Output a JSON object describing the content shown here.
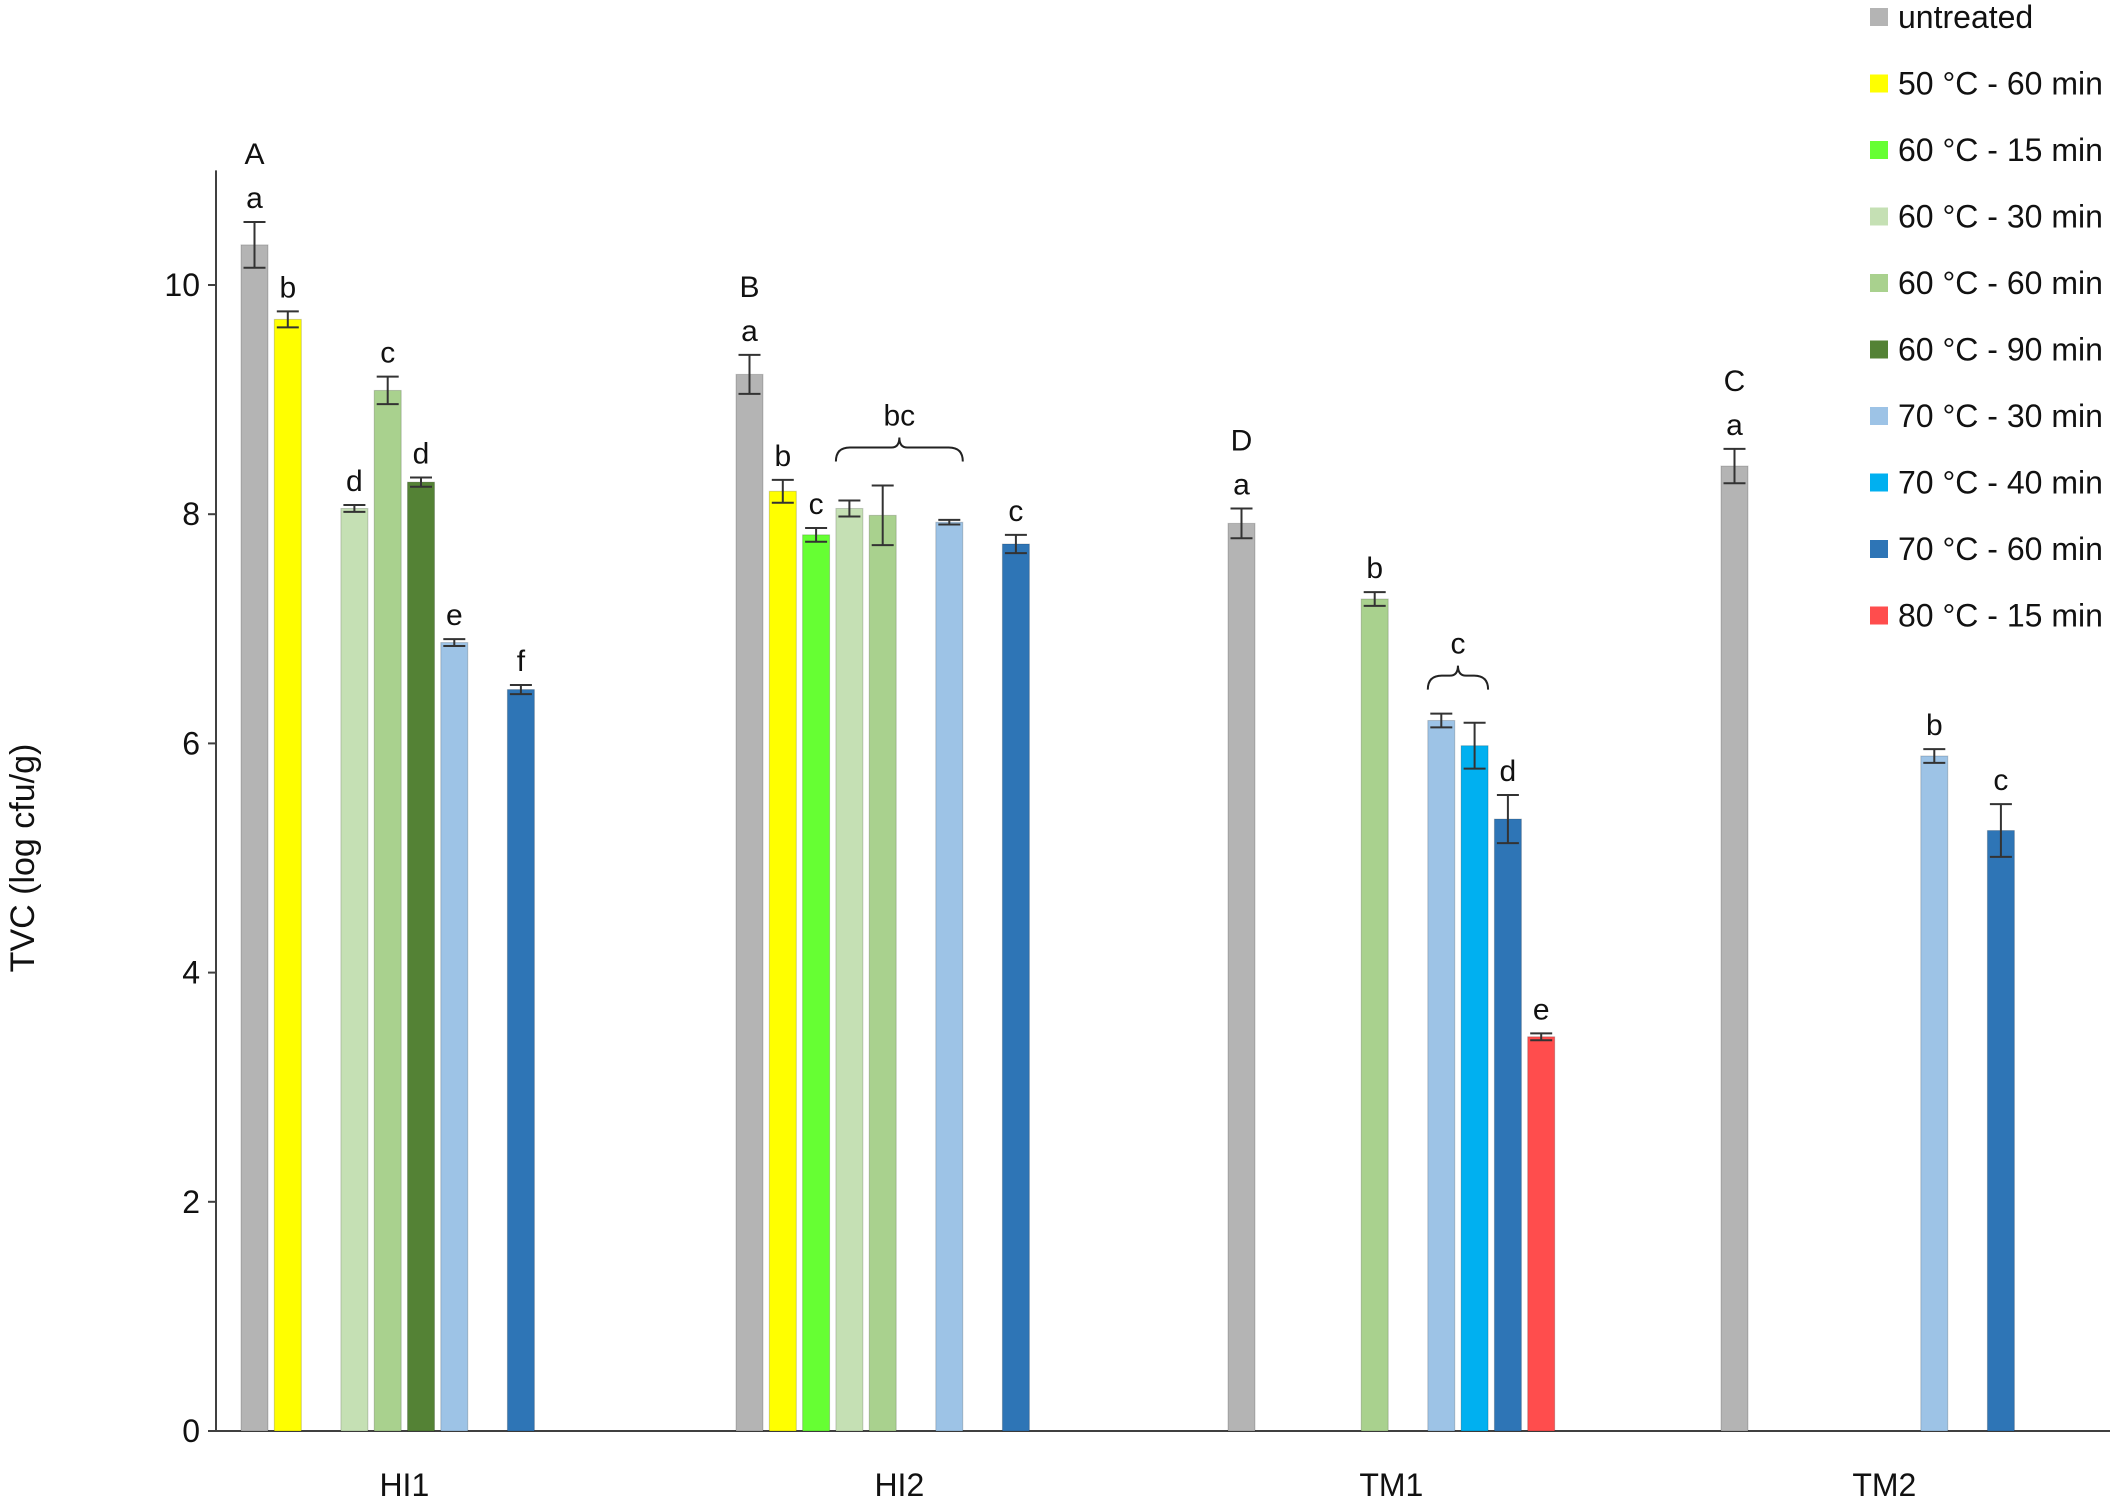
{
  "chart_data": {
    "type": "bar",
    "xlabel": "",
    "ylabel": "TVC (log cfu/g)",
    "ylim": [
      0,
      11
    ],
    "yticks": [
      0,
      2,
      4,
      6,
      8,
      10
    ],
    "grid": false,
    "legend_position": "top-right",
    "categories": [
      "HI1",
      "HI2",
      "TM1",
      "TM2"
    ],
    "group_letters": [
      "A",
      "B",
      "D",
      "C"
    ],
    "series": [
      {
        "name": "untreated",
        "color": "#b4b4b4",
        "values": [
          10.35,
          9.22,
          7.92,
          8.42
        ],
        "errors": [
          0.2,
          0.17,
          0.13,
          0.15
        ],
        "letters": [
          "a",
          "a",
          "a",
          "a"
        ]
      },
      {
        "name": "50 °C - 60 min",
        "color": "#ffff00",
        "values": [
          9.7,
          8.2,
          null,
          null
        ],
        "errors": [
          0.07,
          0.1,
          null,
          null
        ],
        "letters": [
          "b",
          "b",
          "",
          ""
        ]
      },
      {
        "name": "60 °C - 15 min",
        "color": "#66ff33",
        "values": [
          null,
          7.82,
          null,
          null
        ],
        "errors": [
          null,
          0.06,
          null,
          null
        ],
        "letters": [
          "",
          "c",
          "",
          ""
        ]
      },
      {
        "name": "60 °C - 30 min",
        "color": "#c5e0b4",
        "values": [
          8.05,
          8.05,
          null,
          null
        ],
        "errors": [
          0.03,
          0.07,
          null,
          null
        ],
        "letters": [
          "d",
          "",
          "",
          ""
        ]
      },
      {
        "name": "60 °C - 60 min",
        "color": "#a9d18e",
        "values": [
          9.08,
          7.99,
          7.26,
          null
        ],
        "errors": [
          0.12,
          0.26,
          0.06,
          null
        ],
        "letters": [
          "c",
          "",
          "b",
          ""
        ]
      },
      {
        "name": "60 °C - 90 min",
        "color": "#548235",
        "values": [
          8.28,
          null,
          null,
          null
        ],
        "errors": [
          0.04,
          null,
          null,
          null
        ],
        "letters": [
          "d",
          "",
          "",
          ""
        ]
      },
      {
        "name": "70 °C - 30 min",
        "color": "#9dc3e6",
        "values": [
          6.88,
          7.93,
          6.2,
          5.89
        ],
        "errors": [
          0.03,
          0.02,
          0.06,
          0.06
        ],
        "letters": [
          "e",
          "",
          "",
          "b"
        ]
      },
      {
        "name": "70 °C - 40 min",
        "color": "#00b0f0",
        "values": [
          null,
          null,
          5.98,
          null
        ],
        "errors": [
          null,
          null,
          0.2,
          null
        ],
        "letters": [
          "",
          "",
          "",
          ""
        ]
      },
      {
        "name": "70 °C - 60 min",
        "color": "#2e75b6",
        "values": [
          6.47,
          7.74,
          5.34,
          5.24
        ],
        "errors": [
          0.04,
          0.08,
          0.21,
          0.23
        ],
        "letters": [
          "f",
          "c",
          "d",
          "c"
        ]
      },
      {
        "name": "80 °C - 15 min",
        "color": "#ff4d4d",
        "values": [
          null,
          null,
          3.44,
          null
        ],
        "errors": [
          null,
          null,
          0.03,
          null
        ],
        "letters": [
          "",
          "",
          "e",
          ""
        ]
      }
    ],
    "brackets": [
      {
        "category": "HI2",
        "from_series": 3,
        "to_series": 6,
        "label": "bc"
      },
      {
        "category": "TM1",
        "from_series": 6,
        "to_series": 7,
        "label": "c"
      }
    ]
  }
}
